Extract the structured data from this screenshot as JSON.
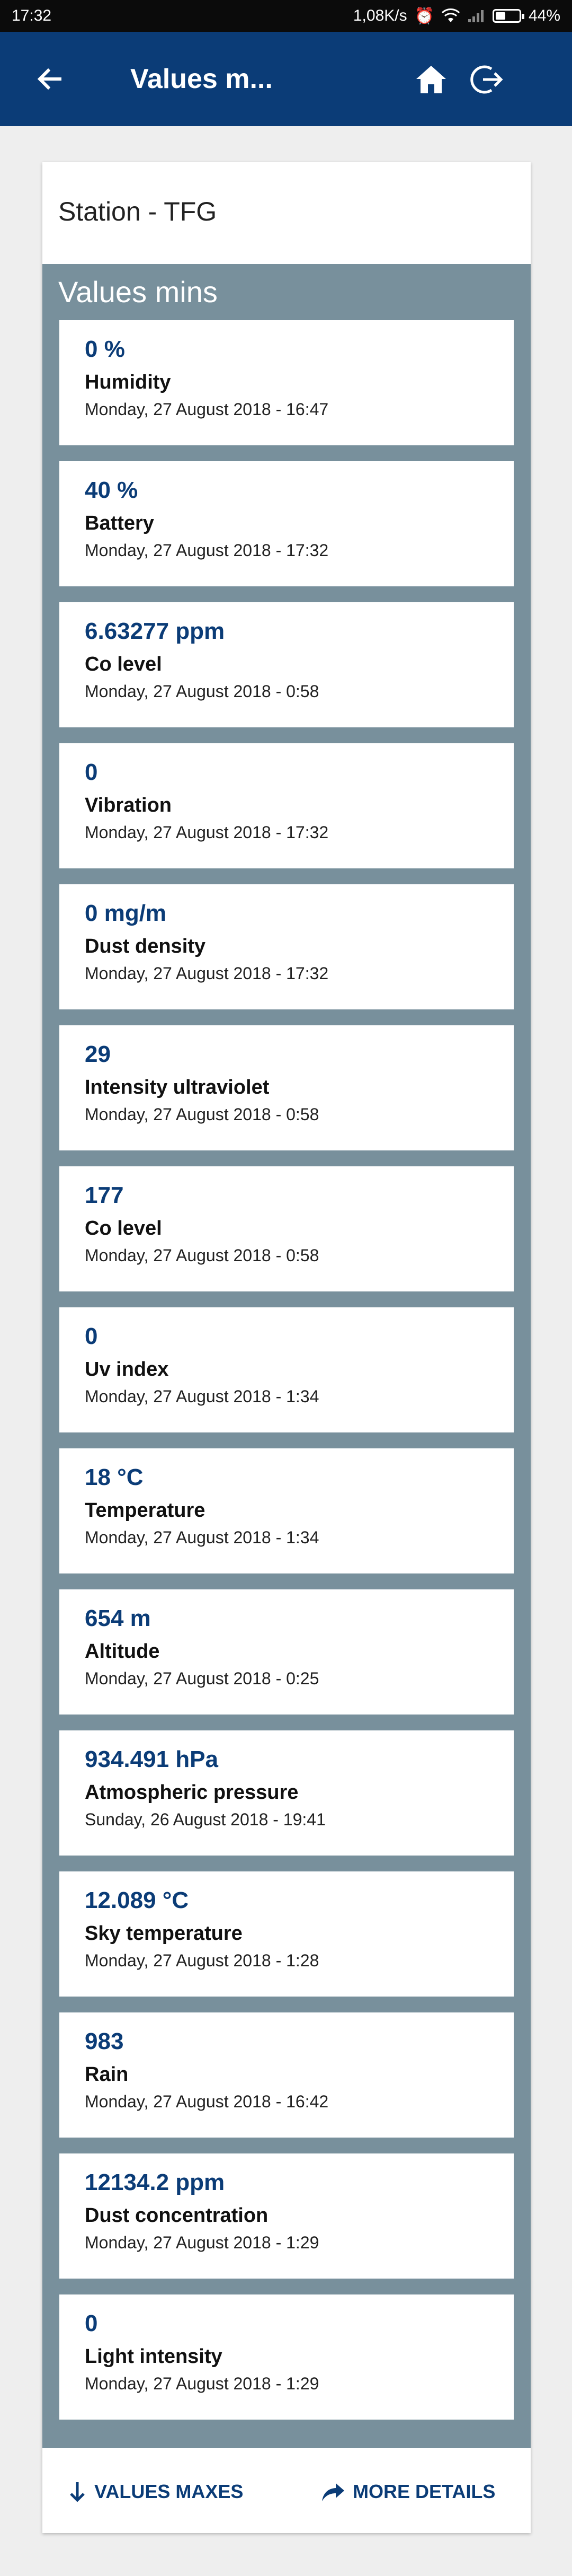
{
  "status_bar": {
    "time": "17:32",
    "net_speed": "1,08K/s",
    "battery": "44%",
    "battery_level": 0.44
  },
  "app_bar": {
    "title": "Values m...",
    "back_icon": "arrow-left-icon",
    "home_icon": "home-icon",
    "logout_icon": "logout-icon"
  },
  "station": {
    "title": "Station - TFG"
  },
  "section": {
    "title": "Values mins",
    "items": [
      {
        "value": "0 %",
        "label": "Humidity",
        "datetime": "Monday, 27 August 2018 - 16:47"
      },
      {
        "value": "40 %",
        "label": "Battery",
        "datetime": "Monday, 27 August 2018 - 17:32"
      },
      {
        "value": "6.63277 ppm",
        "label": "Co level",
        "datetime": "Monday, 27 August 2018 - 0:58"
      },
      {
        "value": "0",
        "label": "Vibration",
        "datetime": "Monday, 27 August 2018 - 17:32"
      },
      {
        "value": "0 mg/m",
        "label": "Dust density",
        "datetime": "Monday, 27 August 2018 - 17:32"
      },
      {
        "value": "29",
        "label": "Intensity ultraviolet",
        "datetime": "Monday, 27 August 2018 - 0:58"
      },
      {
        "value": "177",
        "label": "Co level",
        "datetime": "Monday, 27 August 2018 - 0:58"
      },
      {
        "value": "0",
        "label": "Uv index",
        "datetime": "Monday, 27 August 2018 - 1:34"
      },
      {
        "value": "18 °C",
        "label": "Temperature",
        "datetime": "Monday, 27 August 2018 - 1:34"
      },
      {
        "value": "654 m",
        "label": "Altitude",
        "datetime": "Monday, 27 August 2018 - 0:25"
      },
      {
        "value": "934.491 hPa",
        "label": "Atmospheric pressure",
        "datetime": "Sunday, 26 August 2018 - 19:41"
      },
      {
        "value": "12.089 °C",
        "label": "Sky temperature",
        "datetime": "Monday, 27 August 2018 - 1:28"
      },
      {
        "value": "983",
        "label": "Rain",
        "datetime": "Monday, 27 August 2018 - 16:42"
      },
      {
        "value": "12134.2 ppm",
        "label": "Dust concentration",
        "datetime": "Monday, 27 August 2018 - 1:29"
      },
      {
        "value": "0",
        "label": "Light intensity",
        "datetime": "Monday, 27 August 2018 - 1:29"
      }
    ]
  },
  "footer": {
    "values_maxes_label": "VALUES MAXES",
    "more_details_label": "MORE DETAILS",
    "values_maxes_icon": "arrow-down-icon",
    "more_details_icon": "share-arrow-icon"
  },
  "colors": {
    "app_bar": "#0b3c77",
    "section_bg": "#78909c",
    "value_text": "#0b3c77"
  }
}
